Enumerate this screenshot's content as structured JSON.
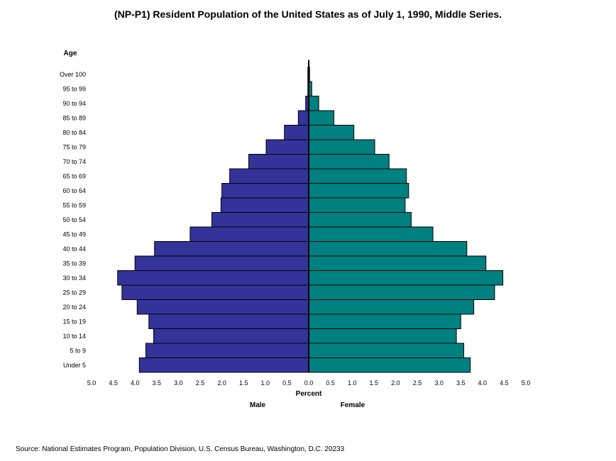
{
  "chart_data": {
    "type": "bar",
    "title": "(NP-P1)  Resident Population of the United States as of July 1, 1990, Middle Series.",
    "y_axis_title": "Age",
    "xlabel": "Percent",
    "xlim": [
      -5.0,
      5.0
    ],
    "x_tick_labels": [
      "5.0",
      "4.5",
      "4.0",
      "3.5",
      "3.0",
      "2.5",
      "2.0",
      "1.5",
      "1.0",
      "0.5",
      "0.0",
      "0.5",
      "1.0",
      "1.5",
      "2.0",
      "2.5",
      "3.0",
      "3.5",
      "4.0",
      "4.5",
      "5.0"
    ],
    "categories": [
      "Under 5",
      "5 to 9",
      "10 to 14",
      "15 to 19",
      "20 to 24",
      "25 to 29",
      "30 to 34",
      "35 to 39",
      "40 to 44",
      "45 to 49",
      "50 to 54",
      "55 to 59",
      "60 to 64",
      "65 to 69",
      "70 to 74",
      "75 to 79",
      "80 to 84",
      "85 to 89",
      "90 to 94",
      "95 to 99",
      "Over 100"
    ],
    "series": [
      {
        "name": "Male",
        "color": "#333399",
        "values": [
          3.9,
          3.75,
          3.57,
          3.68,
          3.95,
          4.3,
          4.4,
          4.0,
          3.55,
          2.73,
          2.23,
          2.02,
          2.0,
          1.82,
          1.38,
          0.98,
          0.56,
          0.24,
          0.07,
          0.02,
          0.01
        ]
      },
      {
        "name": "Female",
        "color": "#008080",
        "values": [
          3.72,
          3.57,
          3.4,
          3.5,
          3.8,
          4.28,
          4.47,
          4.08,
          3.64,
          2.86,
          2.36,
          2.22,
          2.3,
          2.25,
          1.85,
          1.52,
          1.04,
          0.58,
          0.23,
          0.07,
          0.02
        ]
      }
    ],
    "grid": false,
    "legend": "none"
  },
  "source_note": "Source:  National Estimates Program, Population Division, U.S. Census Bureau, Washington, D.C. 20233"
}
